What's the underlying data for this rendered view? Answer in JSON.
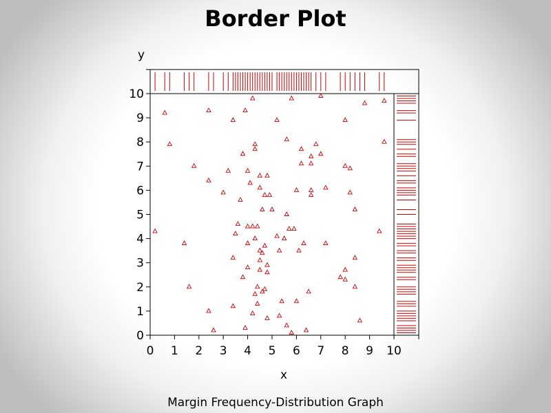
{
  "title": "Border Plot",
  "footnote": "Margin Frequency-Distribution Graph",
  "colors": {
    "marker": "#cc0000",
    "axis": "#000000"
  },
  "chart_data": {
    "type": "scatter",
    "xlabel": "x",
    "ylabel": "y",
    "xlim": [
      0,
      10
    ],
    "ylim": [
      0,
      10
    ],
    "xticks": [
      "0",
      "1",
      "2",
      "3",
      "4",
      "5",
      "6",
      "7",
      "8",
      "9",
      "10"
    ],
    "yticks": [
      "0",
      "1",
      "2",
      "3",
      "4",
      "5",
      "6",
      "7",
      "8",
      "9",
      "10"
    ],
    "marker": "triangle",
    "marginal_rug": [
      "top",
      "right"
    ],
    "points": [
      [
        0.2,
        4.3
      ],
      [
        0.6,
        9.2
      ],
      [
        0.8,
        7.9
      ],
      [
        1.4,
        3.8
      ],
      [
        1.6,
        2.0
      ],
      [
        1.8,
        7.0
      ],
      [
        2.4,
        9.3
      ],
      [
        2.4,
        6.4
      ],
      [
        2.4,
        1.0
      ],
      [
        2.6,
        0.2
      ],
      [
        3.0,
        5.9
      ],
      [
        3.2,
        6.8
      ],
      [
        3.4,
        8.9
      ],
      [
        3.4,
        3.2
      ],
      [
        3.4,
        1.2
      ],
      [
        3.5,
        4.2
      ],
      [
        3.6,
        4.6
      ],
      [
        3.7,
        5.6
      ],
      [
        3.8,
        7.5
      ],
      [
        3.8,
        2.4
      ],
      [
        3.9,
        9.3
      ],
      [
        3.9,
        0.3
      ],
      [
        4.0,
        6.8
      ],
      [
        4.0,
        4.5
      ],
      [
        4.0,
        3.8
      ],
      [
        4.0,
        2.8
      ],
      [
        4.1,
        6.3
      ],
      [
        4.2,
        9.8
      ],
      [
        4.2,
        4.5
      ],
      [
        4.2,
        0.9
      ],
      [
        4.3,
        7.9
      ],
      [
        4.3,
        7.7
      ],
      [
        4.3,
        4.0
      ],
      [
        4.3,
        1.7
      ],
      [
        4.4,
        4.5
      ],
      [
        4.4,
        2.0
      ],
      [
        4.4,
        1.3
      ],
      [
        4.5,
        6.1
      ],
      [
        4.5,
        3.5
      ],
      [
        4.5,
        3.1
      ],
      [
        4.5,
        2.7
      ],
      [
        4.5,
        6.6
      ],
      [
        4.6,
        5.2
      ],
      [
        4.6,
        3.4
      ],
      [
        4.6,
        1.8
      ],
      [
        4.7,
        5.8
      ],
      [
        4.7,
        3.7
      ],
      [
        4.7,
        1.9
      ],
      [
        4.8,
        6.6
      ],
      [
        4.8,
        2.9
      ],
      [
        4.8,
        2.6
      ],
      [
        4.8,
        0.7
      ],
      [
        4.9,
        5.8
      ],
      [
        5.0,
        5.2
      ],
      [
        5.2,
        4.1
      ],
      [
        5.2,
        8.9
      ],
      [
        5.3,
        0.8
      ],
      [
        5.3,
        3.5
      ],
      [
        5.4,
        1.4
      ],
      [
        5.5,
        4.0
      ],
      [
        5.6,
        8.1
      ],
      [
        5.6,
        5.0
      ],
      [
        5.6,
        0.4
      ],
      [
        5.7,
        4.4
      ],
      [
        5.8,
        9.8
      ],
      [
        5.8,
        0.1
      ],
      [
        5.9,
        4.4
      ],
      [
        6.0,
        6.0
      ],
      [
        6.0,
        1.4
      ],
      [
        6.1,
        3.5
      ],
      [
        6.2,
        7.7
      ],
      [
        6.2,
        7.1
      ],
      [
        6.3,
        3.8
      ],
      [
        6.4,
        0.2
      ],
      [
        6.5,
        1.8
      ],
      [
        6.6,
        7.4
      ],
      [
        6.6,
        7.1
      ],
      [
        6.6,
        6.0
      ],
      [
        6.6,
        5.8
      ],
      [
        6.8,
        7.9
      ],
      [
        7.0,
        9.9
      ],
      [
        7.0,
        7.5
      ],
      [
        7.2,
        6.1
      ],
      [
        7.2,
        3.8
      ],
      [
        7.8,
        2.4
      ],
      [
        8.0,
        8.9
      ],
      [
        8.0,
        7.0
      ],
      [
        8.0,
        2.7
      ],
      [
        8.0,
        2.3
      ],
      [
        8.2,
        6.9
      ],
      [
        8.2,
        5.9
      ],
      [
        8.4,
        5.2
      ],
      [
        8.4,
        3.2
      ],
      [
        8.4,
        2.0
      ],
      [
        8.6,
        0.6
      ],
      [
        8.8,
        9.6
      ],
      [
        9.4,
        4.3
      ],
      [
        9.6,
        9.7
      ],
      [
        9.6,
        8.0
      ]
    ]
  }
}
